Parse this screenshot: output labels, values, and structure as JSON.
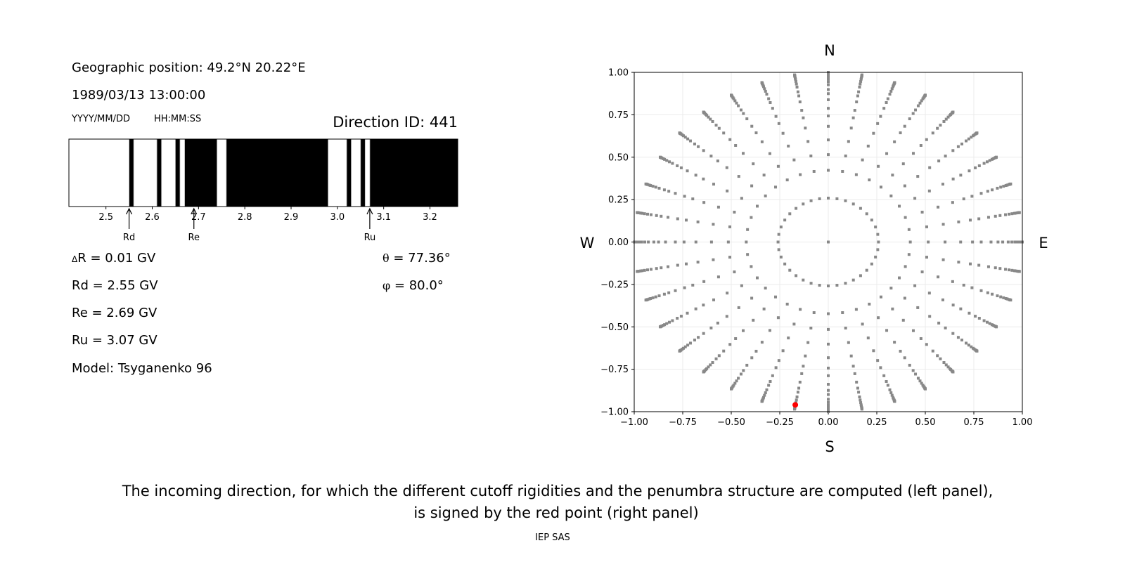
{
  "left_panel": {
    "position": "Geographic position: 49.2°N 20.22°E",
    "datetime": "1989/03/13 13:00:00",
    "date_format": "YYYY/MM/DD",
    "time_format": "HH:MM:SS",
    "direction_id": "Direction ID: 441",
    "delta_r_symbol": "Δ",
    "delta_r": "R = 0.01 GV",
    "rd": "Rd = 2.55 GV",
    "re": "Re = 2.69 GV",
    "ru": "Ru = 3.07 GV",
    "model": "Model: Tsyganenko 96",
    "theta_symbol": "θ",
    "theta": " = 77.36°",
    "phi_symbol": "φ",
    "phi": " = 80.0°"
  },
  "caption": {
    "line1": "The incoming direction, for which the different cutoff rigidities and the penumbra structure are computed (left panel),",
    "line2": "is signed by the red point (right panel)",
    "credit": "IEP SAS"
  },
  "chart_data": [
    {
      "type": "penumbra-bar",
      "xlim": [
        2.42,
        3.26
      ],
      "xticks": [
        "2.5",
        "2.6",
        "2.7",
        "2.8",
        "2.9",
        "3.0",
        "3.1",
        "3.2"
      ],
      "forbidden_bands": [
        [
          2.55,
          2.56
        ],
        [
          2.61,
          2.62
        ],
        [
          2.65,
          2.66
        ],
        [
          2.67,
          2.74
        ],
        [
          2.76,
          2.98
        ],
        [
          3.02,
          3.03
        ],
        [
          3.05,
          3.06
        ],
        [
          3.07,
          3.26
        ]
      ],
      "colors": {
        "forbidden": "#000000",
        "allowed": "#ffffff"
      },
      "markers": [
        {
          "label": "Rd",
          "value": 2.55
        },
        {
          "label": "Re",
          "value": 2.69
        },
        {
          "label": "Ru",
          "value": 3.07
        }
      ]
    },
    {
      "type": "scatter",
      "xlim": [
        -1,
        1
      ],
      "ylim": [
        -1,
        1
      ],
      "xticks": [
        "−1.00",
        "−0.75",
        "−0.50",
        "−0.25",
        "0.00",
        "0.25",
        "0.50",
        "0.75",
        "1.00"
      ],
      "yticks": [
        "−1.00",
        "−0.75",
        "−0.50",
        "−0.25",
        "0.00",
        "0.25",
        "0.50",
        "0.75",
        "1.00"
      ],
      "grid": true,
      "compass": {
        "north": "N",
        "south": "S",
        "east": "E",
        "west": "W"
      },
      "directions_grid": {
        "azimuth_step_deg": 10,
        "inner_ring_zenith_deg": 15,
        "zenith_angles_deg": [
          25,
          31,
          37,
          43,
          48,
          52,
          57,
          61,
          64,
          68,
          71,
          74,
          77,
          79,
          82,
          84,
          86,
          88,
          90
        ],
        "color": "#888888"
      },
      "selected_point": {
        "x": -0.17,
        "y": -0.96,
        "color": "#ff0000"
      }
    }
  ]
}
